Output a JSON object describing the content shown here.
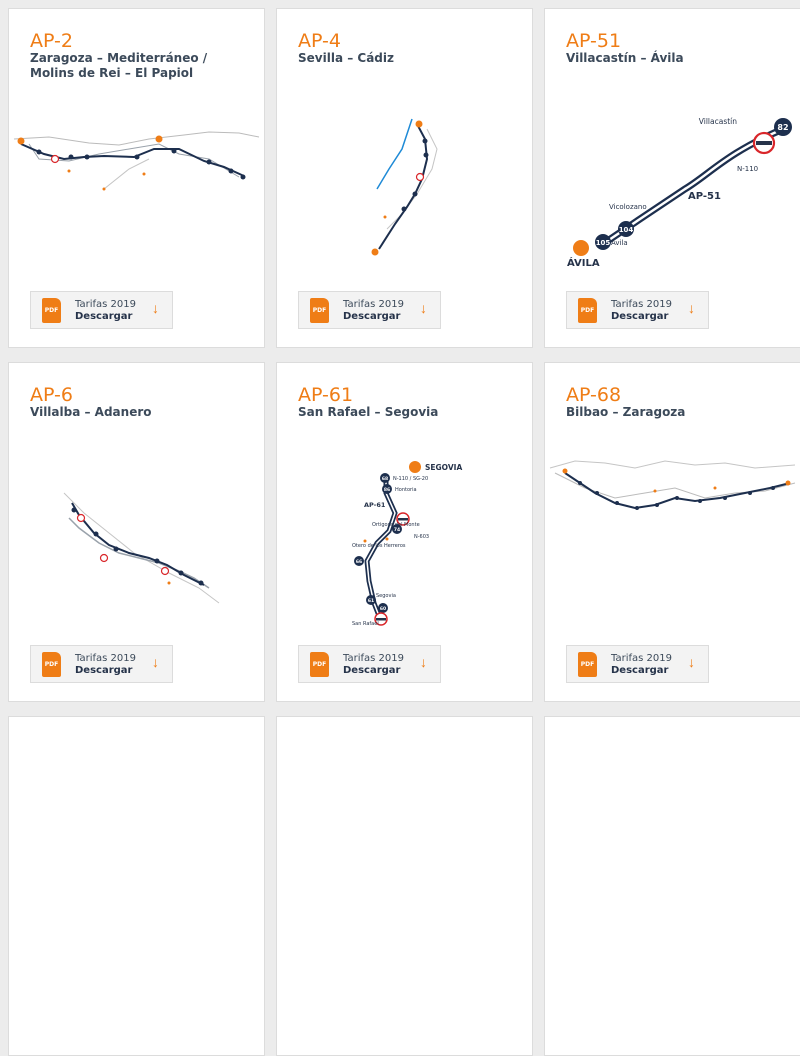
{
  "cards": [
    {
      "code": "AP-2",
      "name": "Zaragoza – Mediterráneo / Molins de Rei – El Papiol",
      "download": {
        "tariff_label": "Tarifas 2019",
        "action_label": "Descargar",
        "file_icon": "PDF"
      }
    },
    {
      "code": "AP-4",
      "name": "Sevilla – Cádiz",
      "download": {
        "tariff_label": "Tarifas 2019",
        "action_label": "Descargar",
        "file_icon": "PDF"
      }
    },
    {
      "code": "AP-51",
      "name": "Villacastín – Ávila",
      "map": {
        "north_city": "Villacastín",
        "south_city": "ÁVILA",
        "road_label": "AP-51",
        "link_road": "N-110",
        "vicolozano": "Vicolozano",
        "avila_small": "Ávila",
        "exit_1": "82",
        "exit_2": "104",
        "exit_3": "105"
      },
      "download": {
        "tariff_label": "Tarifas 2019",
        "action_label": "Descargar",
        "file_icon": "PDF"
      }
    },
    {
      "code": "AP-6",
      "name": "Villalba – Adanero",
      "download": {
        "tariff_label": "Tarifas 2019",
        "action_label": "Descargar",
        "file_icon": "PDF"
      }
    },
    {
      "code": "AP-61",
      "name": "San Rafael – Segovia",
      "map": {
        "city": "SEGOVIA",
        "road_label": "AP-61",
        "ring_road": "N-110 / SG-20",
        "hontoria": "Hontoria",
        "ortigosa": "Ortigosa del Monte",
        "otero": "Otero de los Herreros",
        "n603": "N-603",
        "segovia_small": "Segovia",
        "san_rafael": "San Rafael",
        "exits": [
          "68",
          "86",
          "74",
          "66",
          "61",
          "60"
        ]
      },
      "download": {
        "tariff_label": "Tarifas 2019",
        "action_label": "Descargar",
        "file_icon": "PDF"
      }
    },
    {
      "code": "AP-68",
      "name": "Bilbao – Zaragoza",
      "download": {
        "tariff_label": "Tarifas 2019",
        "action_label": "Descargar",
        "file_icon": "PDF"
      }
    }
  ],
  "colors": {
    "accent": "#ef7d16",
    "route": "#1d2f4e",
    "river": "#1e8ad6",
    "toll_red": "#d9262a"
  }
}
